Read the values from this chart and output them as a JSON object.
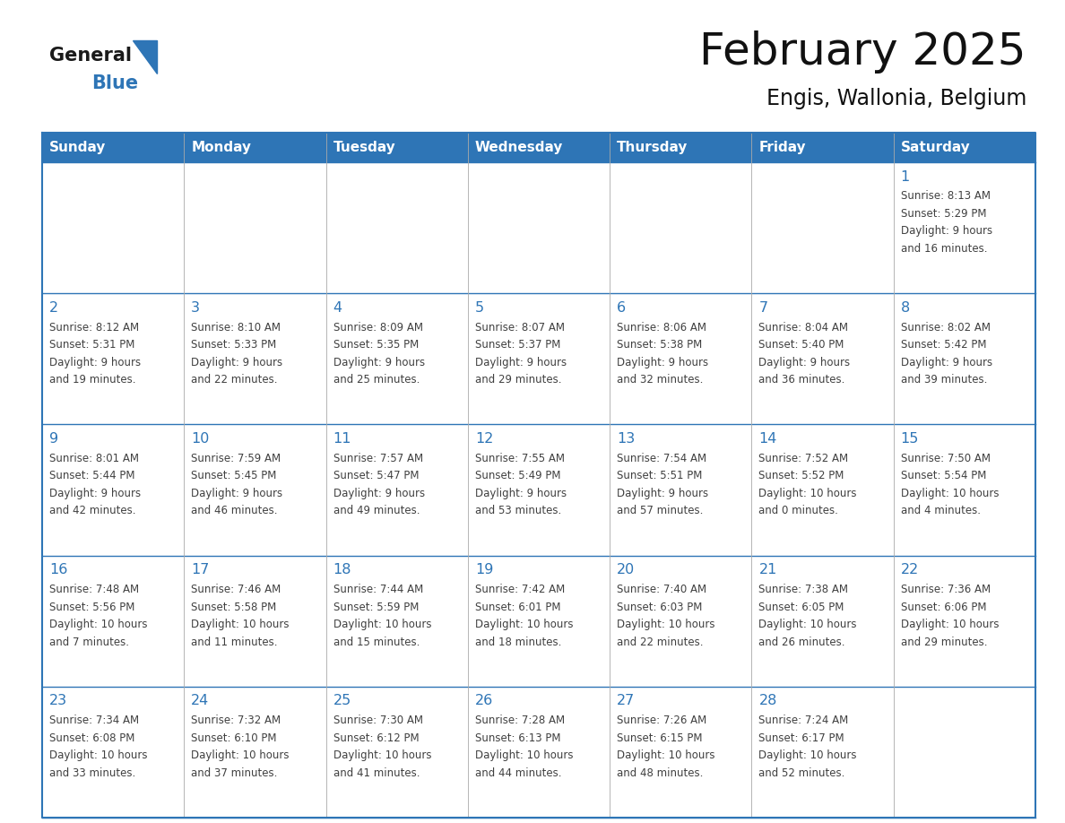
{
  "title": "February 2025",
  "subtitle": "Engis, Wallonia, Belgium",
  "header_color": "#2e75b6",
  "header_text_color": "#ffffff",
  "cell_border_color": "#2e75b6",
  "day_number_color": "#2e75b6",
  "cell_text_color": "#404040",
  "background_color": "#ffffff",
  "days_of_week": [
    "Sunday",
    "Monday",
    "Tuesday",
    "Wednesday",
    "Thursday",
    "Friday",
    "Saturday"
  ],
  "logo_general_color": "#1a1a1a",
  "logo_blue_color": "#2e75b6",
  "calendar_data": [
    [
      null,
      null,
      null,
      null,
      null,
      null,
      {
        "day": "1",
        "sunrise": "8:13 AM",
        "sunset": "5:29 PM",
        "daylight_line1": "9 hours",
        "daylight_line2": "and 16 minutes."
      }
    ],
    [
      {
        "day": "2",
        "sunrise": "8:12 AM",
        "sunset": "5:31 PM",
        "daylight_line1": "9 hours",
        "daylight_line2": "and 19 minutes."
      },
      {
        "day": "3",
        "sunrise": "8:10 AM",
        "sunset": "5:33 PM",
        "daylight_line1": "9 hours",
        "daylight_line2": "and 22 minutes."
      },
      {
        "day": "4",
        "sunrise": "8:09 AM",
        "sunset": "5:35 PM",
        "daylight_line1": "9 hours",
        "daylight_line2": "and 25 minutes."
      },
      {
        "day": "5",
        "sunrise": "8:07 AM",
        "sunset": "5:37 PM",
        "daylight_line1": "9 hours",
        "daylight_line2": "and 29 minutes."
      },
      {
        "day": "6",
        "sunrise": "8:06 AM",
        "sunset": "5:38 PM",
        "daylight_line1": "9 hours",
        "daylight_line2": "and 32 minutes."
      },
      {
        "day": "7",
        "sunrise": "8:04 AM",
        "sunset": "5:40 PM",
        "daylight_line1": "9 hours",
        "daylight_line2": "and 36 minutes."
      },
      {
        "day": "8",
        "sunrise": "8:02 AM",
        "sunset": "5:42 PM",
        "daylight_line1": "9 hours",
        "daylight_line2": "and 39 minutes."
      }
    ],
    [
      {
        "day": "9",
        "sunrise": "8:01 AM",
        "sunset": "5:44 PM",
        "daylight_line1": "9 hours",
        "daylight_line2": "and 42 minutes."
      },
      {
        "day": "10",
        "sunrise": "7:59 AM",
        "sunset": "5:45 PM",
        "daylight_line1": "9 hours",
        "daylight_line2": "and 46 minutes."
      },
      {
        "day": "11",
        "sunrise": "7:57 AM",
        "sunset": "5:47 PM",
        "daylight_line1": "9 hours",
        "daylight_line2": "and 49 minutes."
      },
      {
        "day": "12",
        "sunrise": "7:55 AM",
        "sunset": "5:49 PM",
        "daylight_line1": "9 hours",
        "daylight_line2": "and 53 minutes."
      },
      {
        "day": "13",
        "sunrise": "7:54 AM",
        "sunset": "5:51 PM",
        "daylight_line1": "9 hours",
        "daylight_line2": "and 57 minutes."
      },
      {
        "day": "14",
        "sunrise": "7:52 AM",
        "sunset": "5:52 PM",
        "daylight_line1": "10 hours",
        "daylight_line2": "and 0 minutes."
      },
      {
        "day": "15",
        "sunrise": "7:50 AM",
        "sunset": "5:54 PM",
        "daylight_line1": "10 hours",
        "daylight_line2": "and 4 minutes."
      }
    ],
    [
      {
        "day": "16",
        "sunrise": "7:48 AM",
        "sunset": "5:56 PM",
        "daylight_line1": "10 hours",
        "daylight_line2": "and 7 minutes."
      },
      {
        "day": "17",
        "sunrise": "7:46 AM",
        "sunset": "5:58 PM",
        "daylight_line1": "10 hours",
        "daylight_line2": "and 11 minutes."
      },
      {
        "day": "18",
        "sunrise": "7:44 AM",
        "sunset": "5:59 PM",
        "daylight_line1": "10 hours",
        "daylight_line2": "and 15 minutes."
      },
      {
        "day": "19",
        "sunrise": "7:42 AM",
        "sunset": "6:01 PM",
        "daylight_line1": "10 hours",
        "daylight_line2": "and 18 minutes."
      },
      {
        "day": "20",
        "sunrise": "7:40 AM",
        "sunset": "6:03 PM",
        "daylight_line1": "10 hours",
        "daylight_line2": "and 22 minutes."
      },
      {
        "day": "21",
        "sunrise": "7:38 AM",
        "sunset": "6:05 PM",
        "daylight_line1": "10 hours",
        "daylight_line2": "and 26 minutes."
      },
      {
        "day": "22",
        "sunrise": "7:36 AM",
        "sunset": "6:06 PM",
        "daylight_line1": "10 hours",
        "daylight_line2": "and 29 minutes."
      }
    ],
    [
      {
        "day": "23",
        "sunrise": "7:34 AM",
        "sunset": "6:08 PM",
        "daylight_line1": "10 hours",
        "daylight_line2": "and 33 minutes."
      },
      {
        "day": "24",
        "sunrise": "7:32 AM",
        "sunset": "6:10 PM",
        "daylight_line1": "10 hours",
        "daylight_line2": "and 37 minutes."
      },
      {
        "day": "25",
        "sunrise": "7:30 AM",
        "sunset": "6:12 PM",
        "daylight_line1": "10 hours",
        "daylight_line2": "and 41 minutes."
      },
      {
        "day": "26",
        "sunrise": "7:28 AM",
        "sunset": "6:13 PM",
        "daylight_line1": "10 hours",
        "daylight_line2": "and 44 minutes."
      },
      {
        "day": "27",
        "sunrise": "7:26 AM",
        "sunset": "6:15 PM",
        "daylight_line1": "10 hours",
        "daylight_line2": "and 48 minutes."
      },
      {
        "day": "28",
        "sunrise": "7:24 AM",
        "sunset": "6:17 PM",
        "daylight_line1": "10 hours",
        "daylight_line2": "and 52 minutes."
      },
      null
    ]
  ]
}
